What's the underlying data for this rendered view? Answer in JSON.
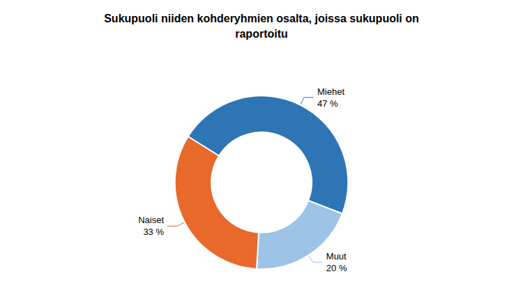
{
  "chart_data": {
    "type": "pie",
    "title": "Sukupuoli niiden kohderyhmien osalta, joissa sukupuoli on\nraportoitu",
    "categories": [
      "Miehet",
      "Muut",
      "Naiset"
    ],
    "values": [
      47,
      20,
      33
    ],
    "value_labels": [
      "47 %",
      "20 %",
      "33 %"
    ],
    "colors": [
      "#2E75B6",
      "#9DC3E6",
      "#E8692A"
    ]
  }
}
